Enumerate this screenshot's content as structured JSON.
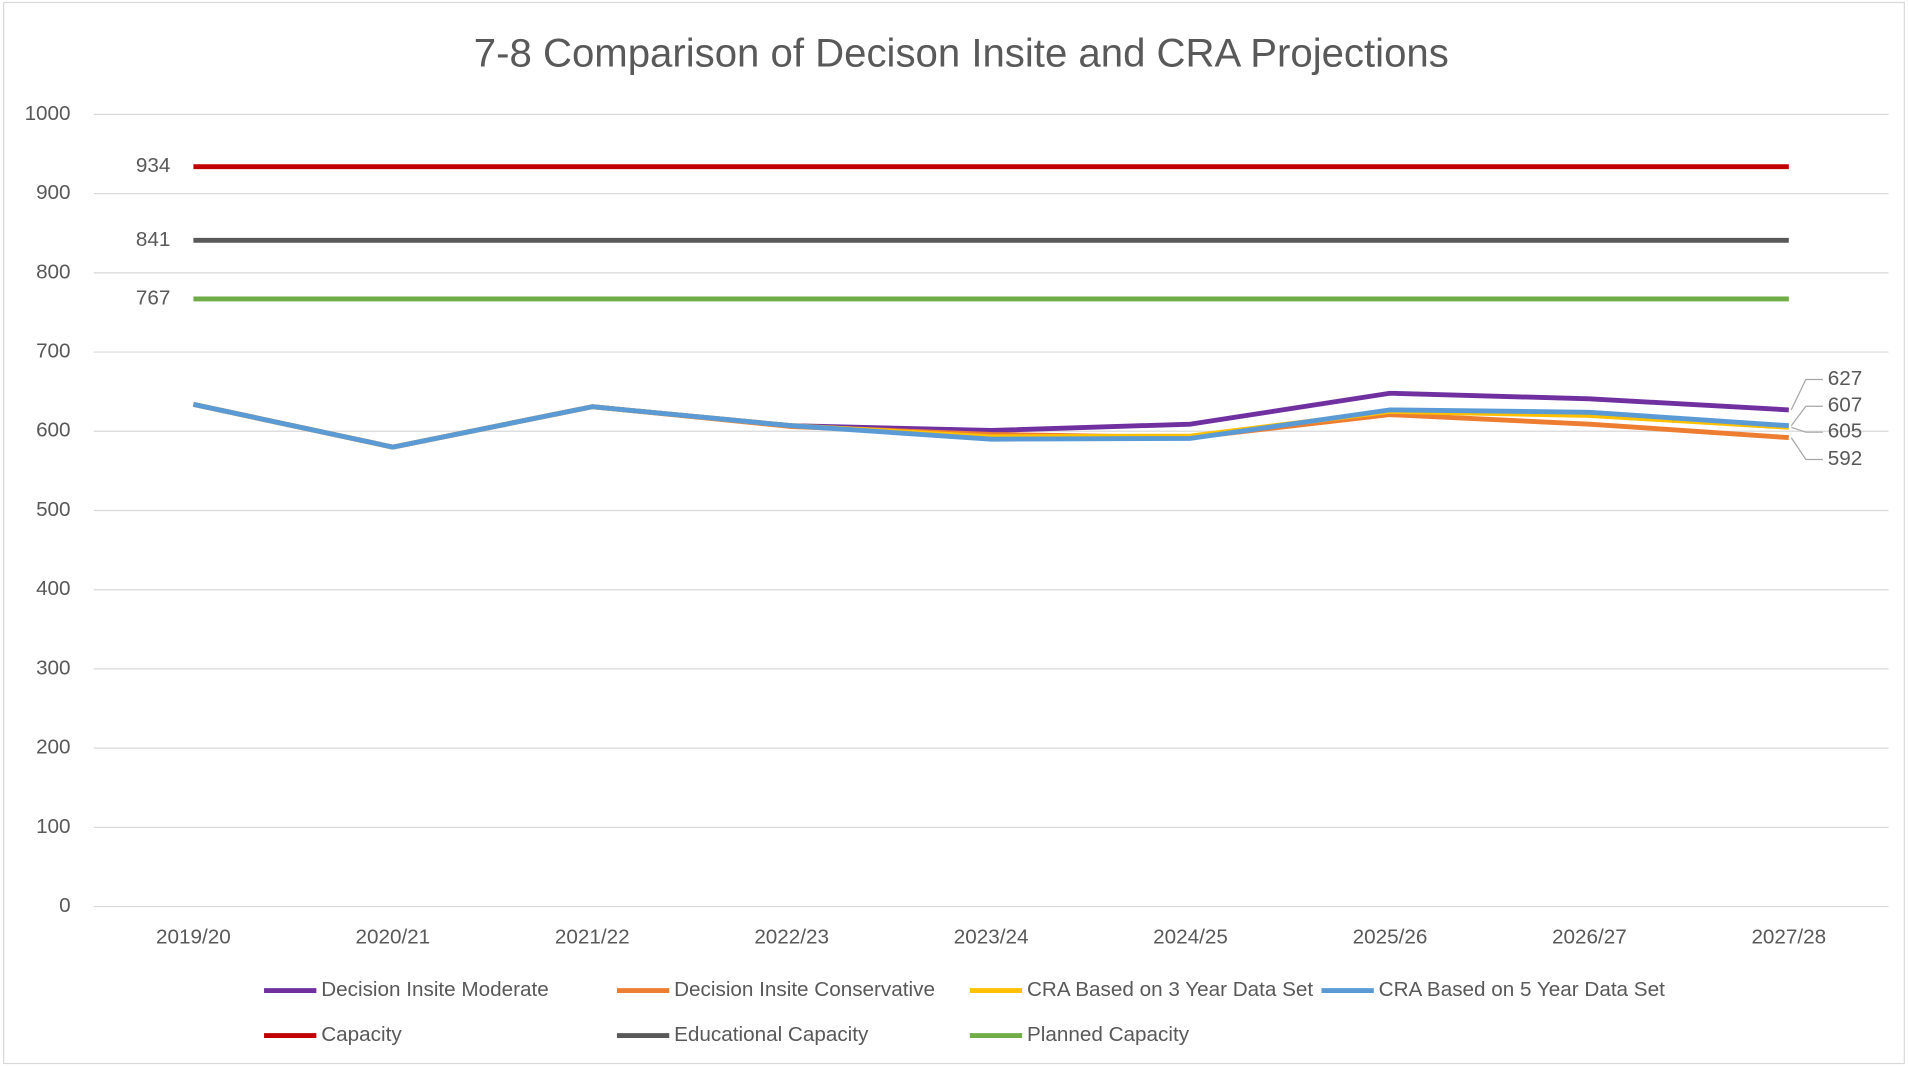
{
  "chart_data": {
    "type": "line",
    "title": "7-8 Comparison of Decison Insite and CRA Projections",
    "categories": [
      "2019/20",
      "2020/21",
      "2021/22",
      "2022/23",
      "2023/24",
      "2024/25",
      "2025/26",
      "2026/27",
      "2027/28"
    ],
    "series": [
      {
        "name": "Decision Insite Moderate",
        "color": "#7030a0",
        "values": [
          634,
          580,
          631,
          607,
          601,
          609,
          648,
          641,
          627
        ]
      },
      {
        "name": "Decision Insite Conservative",
        "color": "#ed7d31",
        "values": [
          634,
          580,
          631,
          606,
          596,
          592,
          621,
          609,
          592
        ]
      },
      {
        "name": "CRA Based on 3 Year Data Set",
        "color": "#ffc000",
        "values": [
          634,
          580,
          631,
          607,
          593,
          594,
          625,
          620,
          605
        ]
      },
      {
        "name": "CRA Based on 5 Year Data Set",
        "color": "#5b9bd5",
        "values": [
          634,
          580,
          631,
          607,
          590,
          591,
          627,
          624,
          607
        ]
      },
      {
        "name": "Capacity",
        "color": "#c00000",
        "values": [
          934,
          934,
          934,
          934,
          934,
          934,
          934,
          934,
          934
        ]
      },
      {
        "name": "Educational Capacity",
        "color": "#595959",
        "values": [
          841,
          841,
          841,
          841,
          841,
          841,
          841,
          841,
          841
        ]
      },
      {
        "name": "Planned Capacity",
        "color": "#70ad47",
        "values": [
          767,
          767,
          767,
          767,
          767,
          767,
          767,
          767,
          767
        ]
      }
    ],
    "ylim": [
      0,
      1000
    ],
    "yticks": [
      0,
      100,
      200,
      300,
      400,
      500,
      600,
      700,
      800,
      900,
      1000
    ],
    "grid": true,
    "legend": "bottom"
  }
}
